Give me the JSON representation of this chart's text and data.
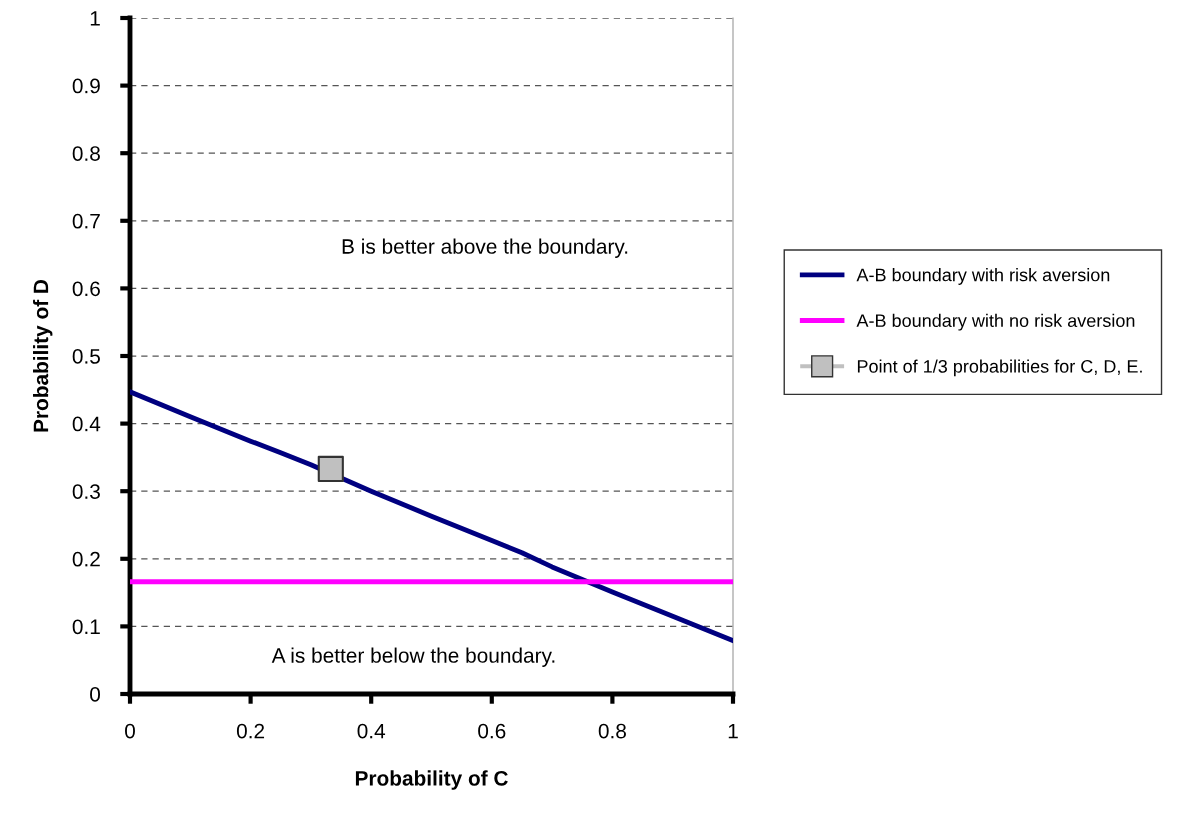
{
  "chart_data": {
    "type": "line",
    "xlabel": "Probability of C",
    "ylabel": "Probability of D",
    "xlim": [
      0,
      1
    ],
    "ylim": [
      0,
      1
    ],
    "xticks": [
      0,
      0.2,
      0.4,
      0.6,
      0.8,
      1
    ],
    "yticks": [
      0,
      0.1,
      0.2,
      0.3,
      0.4,
      0.5,
      0.6,
      0.7,
      0.8,
      0.9,
      1
    ],
    "grid": "y",
    "legend": "right",
    "line_style": "solid",
    "series": [
      {
        "name": "A-B boundary with risk aversion",
        "color": "#000080",
        "x": [
          0,
          0.1,
          0.2,
          0.25,
          0.3,
          0.4,
          0.5,
          0.6,
          0.65,
          0.7,
          0.8,
          0.9,
          1
        ],
        "values": [
          0.447,
          0.41,
          0.374,
          0.357,
          0.339,
          0.3,
          0.263,
          0.227,
          0.209,
          0.188,
          0.151,
          0.115,
          0.079
        ],
        "marker": "none"
      },
      {
        "name": "A-B boundary with no risk aversion",
        "color": "#ff00ff",
        "x": [
          0,
          1
        ],
        "values": [
          0.166,
          0.166
        ],
        "marker": "none"
      },
      {
        "name": "Point of 1/3 probabilities for C, D, E.",
        "color": "#c0c0c0",
        "type": "scatter",
        "x": [
          0.333
        ],
        "values": [
          0.333
        ],
        "marker": "square"
      }
    ],
    "annotations": [
      "B is better above the boundary.",
      "A is better below the boundary."
    ]
  }
}
